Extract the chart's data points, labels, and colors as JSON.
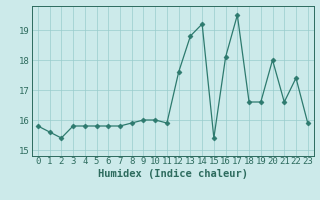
{
  "xlabel": "Humidex (Indice chaleur)",
  "ylabel": "",
  "x": [
    0,
    1,
    2,
    3,
    4,
    5,
    6,
    7,
    8,
    9,
    10,
    11,
    12,
    13,
    14,
    15,
    16,
    17,
    18,
    19,
    20,
    21,
    22,
    23
  ],
  "y": [
    15.8,
    15.6,
    15.4,
    15.8,
    15.8,
    15.8,
    15.8,
    15.8,
    15.9,
    16.0,
    16.0,
    15.9,
    17.6,
    18.8,
    19.2,
    15.4,
    18.1,
    19.5,
    16.6,
    16.6,
    18.0,
    16.6,
    17.4,
    15.9
  ],
  "line_color": "#2d7a6e",
  "marker": "D",
  "marker_size": 2.5,
  "bg_color": "#cceaea",
  "grid_color": "#99cccc",
  "ylim": [
    14.8,
    19.8
  ],
  "yticks": [
    15,
    16,
    17,
    18,
    19
  ],
  "xlim": [
    -0.5,
    23.5
  ],
  "xticks": [
    0,
    1,
    2,
    3,
    4,
    5,
    6,
    7,
    8,
    9,
    10,
    11,
    12,
    13,
    14,
    15,
    16,
    17,
    18,
    19,
    20,
    21,
    22,
    23
  ],
  "xtick_labels": [
    "0",
    "1",
    "2",
    "3",
    "4",
    "5",
    "6",
    "7",
    "8",
    "9",
    "10",
    "11",
    "12",
    "13",
    "14",
    "15",
    "16",
    "17",
    "18",
    "19",
    "20",
    "21",
    "22",
    "23"
  ],
  "tick_color": "#2d6b5e",
  "label_fontsize": 7.5,
  "tick_fontsize": 6.5
}
